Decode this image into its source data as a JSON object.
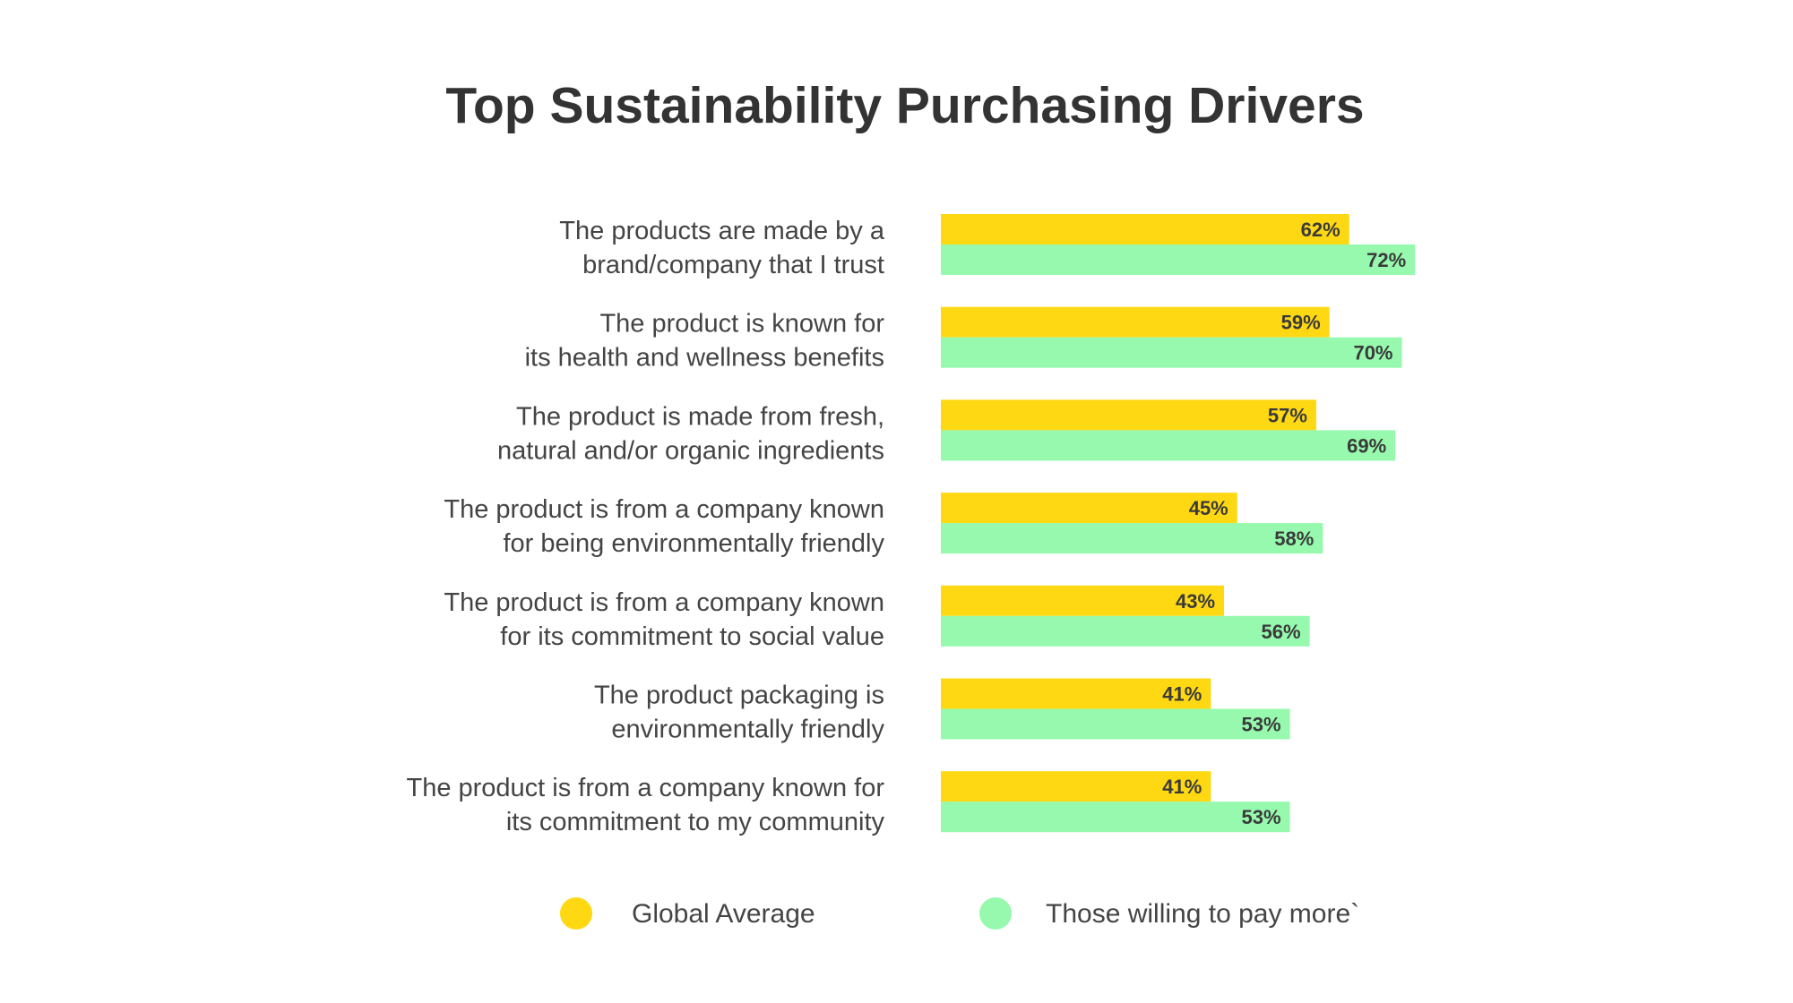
{
  "chart_data": {
    "type": "bar",
    "orientation": "horizontal",
    "title": "Top Sustainability Purchasing Drivers",
    "xlabel": "",
    "ylabel": "",
    "xlim": [
      0,
      100
    ],
    "grid": false,
    "legend_placement": "bottom",
    "categories": [
      [
        "The products are made by a",
        "brand/company that I trust"
      ],
      [
        "The product is known for",
        "its health and wellness benefits"
      ],
      [
        "The product is made from fresh,",
        "natural and/or organic ingredients"
      ],
      [
        "The product is from a company known",
        "for being environmentally friendly"
      ],
      [
        "The product is from a company known",
        "for its commitment to social value"
      ],
      [
        "The product packaging is",
        "environmentally friendly"
      ],
      [
        "The product is from a company known for",
        "its commitment to my community"
      ]
    ],
    "series": [
      {
        "name": "Global Average",
        "color": "#FFD814",
        "values": [
          62,
          59,
          57,
          45,
          43,
          41,
          41
        ],
        "labels": [
          "62%",
          "59%",
          "57%",
          "45%",
          "43%",
          "41%",
          "41%"
        ]
      },
      {
        "name": "Those willing to pay more`",
        "color": "#96F9AD",
        "values": [
          72,
          70,
          69,
          58,
          56,
          53,
          53
        ],
        "labels": [
          "72%",
          "70%",
          "69%",
          "58%",
          "56%",
          "53%",
          "53%"
        ]
      }
    ]
  }
}
